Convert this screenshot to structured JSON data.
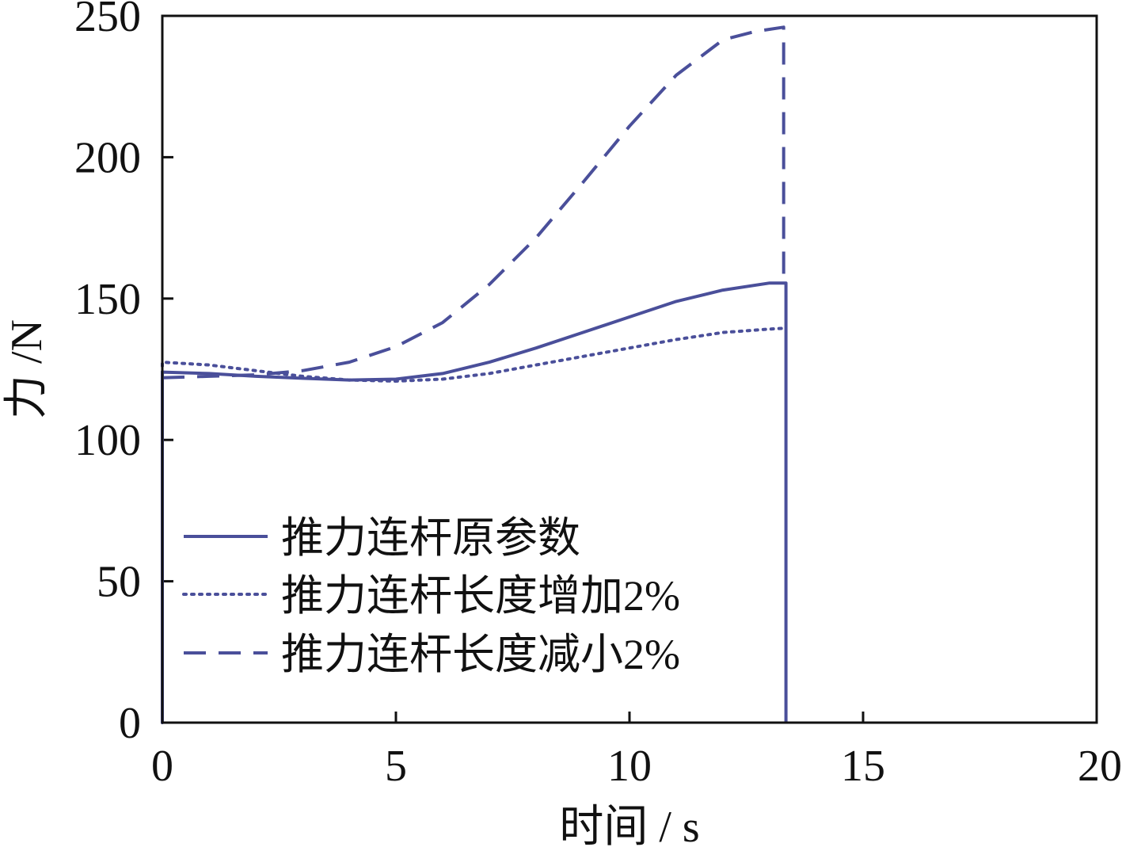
{
  "chart_data": {
    "type": "line",
    "title": "",
    "xlabel": "时间 / s",
    "ylabel": "力 /N",
    "xlim": [
      0,
      20
    ],
    "ylim": [
      0,
      250
    ],
    "xticks": [
      0,
      5,
      10,
      15,
      20
    ],
    "yticks": [
      0,
      50,
      100,
      150,
      200,
      250
    ],
    "grid": false,
    "legend_position": "lower-left",
    "line_color": "#4a4f9a",
    "series": [
      {
        "name": "推力连杆原参数",
        "style": "solid",
        "x": [
          0,
          0,
          1,
          2,
          3,
          4,
          5,
          6,
          7,
          8,
          9,
          10,
          11,
          12,
          13,
          13.35,
          13.35
        ],
        "y": [
          0,
          124,
          123.5,
          122.5,
          121.8,
          121.2,
          121.5,
          123.5,
          127.5,
          132.5,
          138,
          143.5,
          149,
          153,
          155.5,
          155.5,
          0
        ]
      },
      {
        "name": "推力连杆长度增加2%",
        "style": "dotted",
        "x": [
          0,
          0,
          1,
          2,
          3,
          4,
          5,
          6,
          7,
          8,
          9,
          10,
          11,
          12,
          13,
          13.3
        ],
        "y": [
          0,
          127.5,
          126.5,
          124.5,
          122.5,
          121.2,
          120.8,
          121.5,
          123.5,
          126.5,
          129.5,
          132.5,
          135.5,
          138,
          139.2,
          139.5
        ]
      },
      {
        "name": "推力连杆长度减小2%",
        "style": "dashed",
        "x": [
          0,
          1,
          2,
          3,
          4,
          5,
          6,
          7,
          8,
          9,
          10,
          11,
          12,
          12.7,
          13.3,
          13.3
        ],
        "y": [
          122,
          122.5,
          123,
          124.5,
          127.5,
          133,
          141.5,
          155,
          171.5,
          191,
          211,
          229,
          241.5,
          244.5,
          246,
          155
        ]
      }
    ]
  }
}
